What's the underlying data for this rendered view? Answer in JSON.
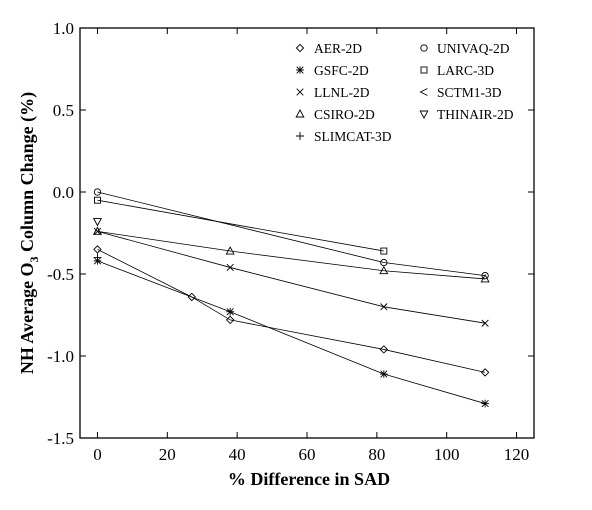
{
  "chart_data": {
    "type": "line",
    "xlabel": "% Difference in SAD",
    "ylabel_parts": [
      "NH Average O",
      "3",
      " Column Change (%)"
    ],
    "xlim": [
      -5,
      125
    ],
    "ylim": [
      -1.5,
      1.0
    ],
    "xticks": [
      0,
      20,
      40,
      60,
      80,
      100,
      120
    ],
    "xtick_labels": [
      "0",
      "20",
      "40",
      "60",
      "80",
      "100",
      "120"
    ],
    "yticks": [
      1.0,
      0.5,
      0.0,
      -0.5,
      -1.0,
      -1.5
    ],
    "ytick_labels": [
      "1.0",
      "0.5",
      "0.0",
      "-0.5",
      "-1.0",
      "-1.5"
    ],
    "legend_position": "top-right",
    "series": [
      {
        "name": "AER-2D",
        "marker": "diamond",
        "x": [
          0,
          27,
          38,
          82,
          111
        ],
        "y": [
          -0.35,
          -0.64,
          -0.78,
          -0.96,
          -1.1
        ]
      },
      {
        "name": "GSFC-2D",
        "marker": "asterisk",
        "x": [
          0,
          38,
          82,
          111
        ],
        "y": [
          -0.42,
          -0.73,
          -1.11,
          -1.29
        ]
      },
      {
        "name": "LLNL-2D",
        "marker": "x",
        "x": [
          0,
          38,
          82,
          111
        ],
        "y": [
          -0.24,
          -0.46,
          -0.7,
          -0.8
        ]
      },
      {
        "name": "CSIRO-2D",
        "marker": "triangle",
        "x": [
          0,
          38,
          82,
          111
        ],
        "y": [
          -0.24,
          -0.36,
          -0.48,
          -0.53
        ]
      },
      {
        "name": "SLIMCAT-3D",
        "marker": "plus",
        "x": [
          0
        ],
        "y": [
          -0.4
        ]
      },
      {
        "name": "UNIVAQ-2D",
        "marker": "circle",
        "x": [
          0,
          82,
          111
        ],
        "y": [
          0.0,
          -0.43,
          -0.51
        ]
      },
      {
        "name": "LARC-3D",
        "marker": "square",
        "x": [
          0,
          82
        ],
        "y": [
          -0.05,
          -0.36
        ]
      },
      {
        "name": "SCTM1-3D",
        "marker": "lt",
        "x": [],
        "y": []
      },
      {
        "name": "THINAIR-2D",
        "marker": "tri-down",
        "x": [
          0
        ],
        "y": [
          -0.18
        ]
      }
    ]
  }
}
